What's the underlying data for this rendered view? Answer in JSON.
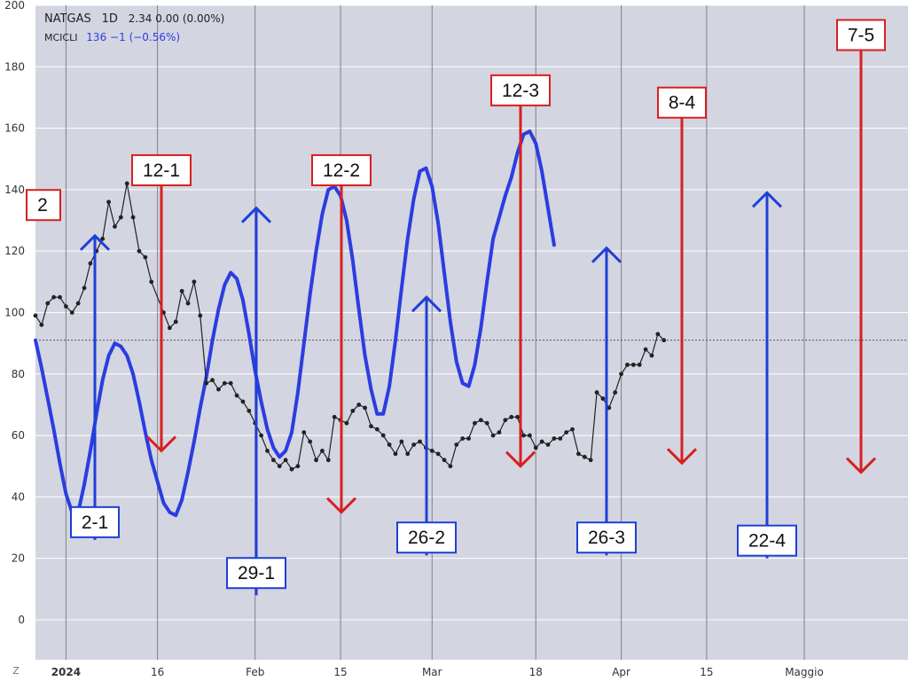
{
  "legend": {
    "symbol": "NATGAS",
    "timeframe": "1D",
    "last": "2.34",
    "change": "0.00",
    "change_pct": "(0.00%)",
    "indicator": "MCICLI",
    "indicator_value": "136",
    "indicator_change": "−1",
    "indicator_change_pct": "(−0.56%)"
  },
  "timezone_button": "Z",
  "colors": {
    "background": "#d3d5e1",
    "grid": "#ffffff",
    "price_line": "#222222",
    "cycle_line": "#2b3de0",
    "top_marker": "#d91f1f",
    "bottom_marker": "#1f3fd6"
  },
  "chart_data": {
    "type": "line",
    "ylim": [
      -13,
      200
    ],
    "yticks": [
      0,
      20,
      40,
      60,
      80,
      100,
      120,
      140,
      160,
      180,
      200
    ],
    "x_axis": {
      "start": "2023-12-27",
      "end": "2024-05-18",
      "ticks": [
        {
          "date": "2024-01-01",
          "label": "2024",
          "bold": true
        },
        {
          "date": "2024-01-16",
          "label": "16",
          "bold": false
        },
        {
          "date": "2024-02-01",
          "label": "Feb",
          "bold": false
        },
        {
          "date": "2024-02-15",
          "label": "15",
          "bold": false
        },
        {
          "date": "2024-03-01",
          "label": "Mar",
          "bold": false
        },
        {
          "date": "2024-03-18",
          "label": "18",
          "bold": false
        },
        {
          "date": "2024-04-01",
          "label": "Apr",
          "bold": false
        },
        {
          "date": "2024-04-15",
          "label": "15",
          "bold": false
        },
        {
          "date": "2024-05-01",
          "label": "Maggio",
          "bold": false
        }
      ]
    },
    "reference_line_y": 91,
    "series": [
      {
        "role": "price",
        "markers": true,
        "points": [
          [
            "2023-12-27",
            99
          ],
          [
            "2023-12-28",
            96
          ],
          [
            "2023-12-29",
            103
          ],
          [
            "2023-12-30",
            105
          ],
          [
            "2023-12-31",
            105
          ],
          [
            "2024-01-01",
            102
          ],
          [
            "2024-01-02",
            100
          ],
          [
            "2024-01-03",
            103
          ],
          [
            "2024-01-04",
            108
          ],
          [
            "2024-01-05",
            116
          ],
          [
            "2024-01-06",
            120
          ],
          [
            "2024-01-07",
            124
          ],
          [
            "2024-01-08",
            136
          ],
          [
            "2024-01-09",
            128
          ],
          [
            "2024-01-10",
            131
          ],
          [
            "2024-01-11",
            142
          ],
          [
            "2024-01-12",
            131
          ],
          [
            "2024-01-13",
            120
          ],
          [
            "2024-01-14",
            118
          ],
          [
            "2024-01-15",
            110
          ],
          [
            "2024-01-17",
            100
          ],
          [
            "2024-01-18",
            95
          ],
          [
            "2024-01-19",
            97
          ],
          [
            "2024-01-20",
            107
          ],
          [
            "2024-01-21",
            103
          ],
          [
            "2024-01-22",
            110
          ],
          [
            "2024-01-23",
            99
          ],
          [
            "2024-01-24",
            77
          ],
          [
            "2024-01-25",
            78
          ],
          [
            "2024-01-26",
            75
          ],
          [
            "2024-01-27",
            77
          ],
          [
            "2024-01-28",
            77
          ],
          [
            "2024-01-29",
            73
          ],
          [
            "2024-01-30",
            71
          ],
          [
            "2024-01-31",
            68
          ],
          [
            "2024-02-01",
            64
          ],
          [
            "2024-02-02",
            60
          ],
          [
            "2024-02-03",
            55
          ],
          [
            "2024-02-04",
            52
          ],
          [
            "2024-02-05",
            50
          ],
          [
            "2024-02-06",
            52
          ],
          [
            "2024-02-07",
            49
          ],
          [
            "2024-02-08",
            50
          ],
          [
            "2024-02-09",
            61
          ],
          [
            "2024-02-10",
            58
          ],
          [
            "2024-02-11",
            52
          ],
          [
            "2024-02-12",
            55
          ],
          [
            "2024-02-13",
            52
          ],
          [
            "2024-02-14",
            66
          ],
          [
            "2024-02-15",
            65
          ],
          [
            "2024-02-16",
            64
          ],
          [
            "2024-02-17",
            68
          ],
          [
            "2024-02-18",
            70
          ],
          [
            "2024-02-19",
            69
          ],
          [
            "2024-02-20",
            63
          ],
          [
            "2024-02-21",
            62
          ],
          [
            "2024-02-22",
            60
          ],
          [
            "2024-02-23",
            57
          ],
          [
            "2024-02-24",
            54
          ],
          [
            "2024-02-25",
            58
          ],
          [
            "2024-02-26",
            54
          ],
          [
            "2024-02-27",
            57
          ],
          [
            "2024-02-28",
            58
          ],
          [
            "2024-02-29",
            56
          ],
          [
            "2024-03-01",
            55
          ],
          [
            "2024-03-02",
            54
          ],
          [
            "2024-03-03",
            52
          ],
          [
            "2024-03-04",
            50
          ],
          [
            "2024-03-05",
            57
          ],
          [
            "2024-03-06",
            59
          ],
          [
            "2024-03-07",
            59
          ],
          [
            "2024-03-08",
            64
          ],
          [
            "2024-03-09",
            65
          ],
          [
            "2024-03-10",
            64
          ],
          [
            "2024-03-11",
            60
          ],
          [
            "2024-03-12",
            61
          ],
          [
            "2024-03-13",
            65
          ],
          [
            "2024-03-14",
            66
          ],
          [
            "2024-03-15",
            66
          ],
          [
            "2024-03-16",
            60
          ],
          [
            "2024-03-17",
            60
          ],
          [
            "2024-03-18",
            56
          ],
          [
            "2024-03-19",
            58
          ],
          [
            "2024-03-20",
            57
          ],
          [
            "2024-03-21",
            59
          ],
          [
            "2024-03-22",
            59
          ],
          [
            "2024-03-23",
            61
          ],
          [
            "2024-03-24",
            62
          ],
          [
            "2024-03-25",
            54
          ],
          [
            "2024-03-26",
            53
          ],
          [
            "2024-03-27",
            52
          ],
          [
            "2024-03-28",
            74
          ],
          [
            "2024-03-29",
            72
          ],
          [
            "2024-03-30",
            69
          ],
          [
            "2024-03-31",
            74
          ],
          [
            "2024-04-01",
            80
          ],
          [
            "2024-04-02",
            83
          ],
          [
            "2024-04-03",
            83
          ],
          [
            "2024-04-04",
            83
          ],
          [
            "2024-04-05",
            88
          ],
          [
            "2024-04-06",
            86
          ],
          [
            "2024-04-07",
            93
          ],
          [
            "2024-04-08",
            91
          ]
        ]
      },
      {
        "role": "cycle",
        "markers": false,
        "points": [
          [
            "2023-12-27",
            91
          ],
          [
            "2023-12-28",
            82
          ],
          [
            "2023-12-29",
            72
          ],
          [
            "2023-12-30",
            62
          ],
          [
            "2023-12-31",
            51
          ],
          [
            "2024-01-01",
            41
          ],
          [
            "2024-01-02",
            35
          ],
          [
            "2024-01-03",
            35
          ],
          [
            "2024-01-04",
            44
          ],
          [
            "2024-01-05",
            55
          ],
          [
            "2024-01-06",
            67
          ],
          [
            "2024-01-07",
            78
          ],
          [
            "2024-01-08",
            86
          ],
          [
            "2024-01-09",
            90
          ],
          [
            "2024-01-10",
            89
          ],
          [
            "2024-01-11",
            86
          ],
          [
            "2024-01-12",
            80
          ],
          [
            "2024-01-13",
            71
          ],
          [
            "2024-01-14",
            61
          ],
          [
            "2024-01-15",
            52
          ],
          [
            "2024-01-16",
            45
          ],
          [
            "2024-01-17",
            38
          ],
          [
            "2024-01-18",
            35
          ],
          [
            "2024-01-19",
            34
          ],
          [
            "2024-01-20",
            39
          ],
          [
            "2024-01-21",
            48
          ],
          [
            "2024-01-22",
            58
          ],
          [
            "2024-01-23",
            69
          ],
          [
            "2024-01-24",
            79
          ],
          [
            "2024-01-25",
            91
          ],
          [
            "2024-01-26",
            101
          ],
          [
            "2024-01-27",
            109
          ],
          [
            "2024-01-28",
            113
          ],
          [
            "2024-01-29",
            111
          ],
          [
            "2024-01-30",
            104
          ],
          [
            "2024-01-31",
            93
          ],
          [
            "2024-02-01",
            81
          ],
          [
            "2024-02-02",
            71
          ],
          [
            "2024-02-03",
            62
          ],
          [
            "2024-02-04",
            56
          ],
          [
            "2024-02-05",
            53
          ],
          [
            "2024-02-06",
            55
          ],
          [
            "2024-02-07",
            61
          ],
          [
            "2024-02-08",
            74
          ],
          [
            "2024-02-09",
            90
          ],
          [
            "2024-02-10",
            106
          ],
          [
            "2024-02-11",
            120
          ],
          [
            "2024-02-12",
            132
          ],
          [
            "2024-02-13",
            140
          ],
          [
            "2024-02-14",
            141
          ],
          [
            "2024-02-15",
            138
          ],
          [
            "2024-02-16",
            130
          ],
          [
            "2024-02-17",
            117
          ],
          [
            "2024-02-18",
            101
          ],
          [
            "2024-02-19",
            86
          ],
          [
            "2024-02-20",
            75
          ],
          [
            "2024-02-21",
            67
          ],
          [
            "2024-02-22",
            67
          ],
          [
            "2024-02-23",
            76
          ],
          [
            "2024-02-24",
            91
          ],
          [
            "2024-02-25",
            108
          ],
          [
            "2024-02-26",
            124
          ],
          [
            "2024-02-27",
            137
          ],
          [
            "2024-02-28",
            146
          ],
          [
            "2024-02-29",
            147
          ],
          [
            "2024-03-01",
            141
          ],
          [
            "2024-03-02",
            129
          ],
          [
            "2024-03-03",
            113
          ],
          [
            "2024-03-04",
            97
          ],
          [
            "2024-03-05",
            84
          ],
          [
            "2024-03-06",
            77
          ],
          [
            "2024-03-07",
            76
          ],
          [
            "2024-03-08",
            83
          ],
          [
            "2024-03-09",
            95
          ],
          [
            "2024-03-10",
            110
          ],
          [
            "2024-03-11",
            124
          ],
          [
            "2024-03-12",
            131
          ],
          [
            "2024-03-13",
            138
          ],
          [
            "2024-03-14",
            144
          ],
          [
            "2024-03-15",
            152
          ],
          [
            "2024-03-16",
            158
          ],
          [
            "2024-03-17",
            159
          ],
          [
            "2024-03-18",
            155
          ],
          [
            "2024-03-19",
            146
          ],
          [
            "2024-03-20",
            134
          ],
          [
            "2024-03-21",
            122
          ]
        ]
      }
    ],
    "markers": [
      {
        "label": "2",
        "kind": "top",
        "partial": true
      },
      {
        "label": "12-1",
        "kind": "top",
        "from": 142,
        "to": 55
      },
      {
        "label": "12-2",
        "kind": "top",
        "from": 142,
        "to": 35
      },
      {
        "label": "12-3",
        "kind": "top",
        "from": 168,
        "to": 50
      },
      {
        "label": "8-4",
        "kind": "top",
        "from": 164,
        "to": 51
      },
      {
        "label": "7-5",
        "kind": "top",
        "from": 186,
        "to": 48
      },
      {
        "label": "2-1",
        "kind": "bottom",
        "from": 26,
        "to": 125
      },
      {
        "label": "29-1",
        "kind": "bottom",
        "from": 8,
        "to": 134
      },
      {
        "label": "26-2",
        "kind": "bottom",
        "from": 21,
        "to": 105
      },
      {
        "label": "26-3",
        "kind": "bottom",
        "from": 21,
        "to": 121
      },
      {
        "label": "22-4",
        "kind": "bottom",
        "from": 20,
        "to": 139
      }
    ]
  }
}
